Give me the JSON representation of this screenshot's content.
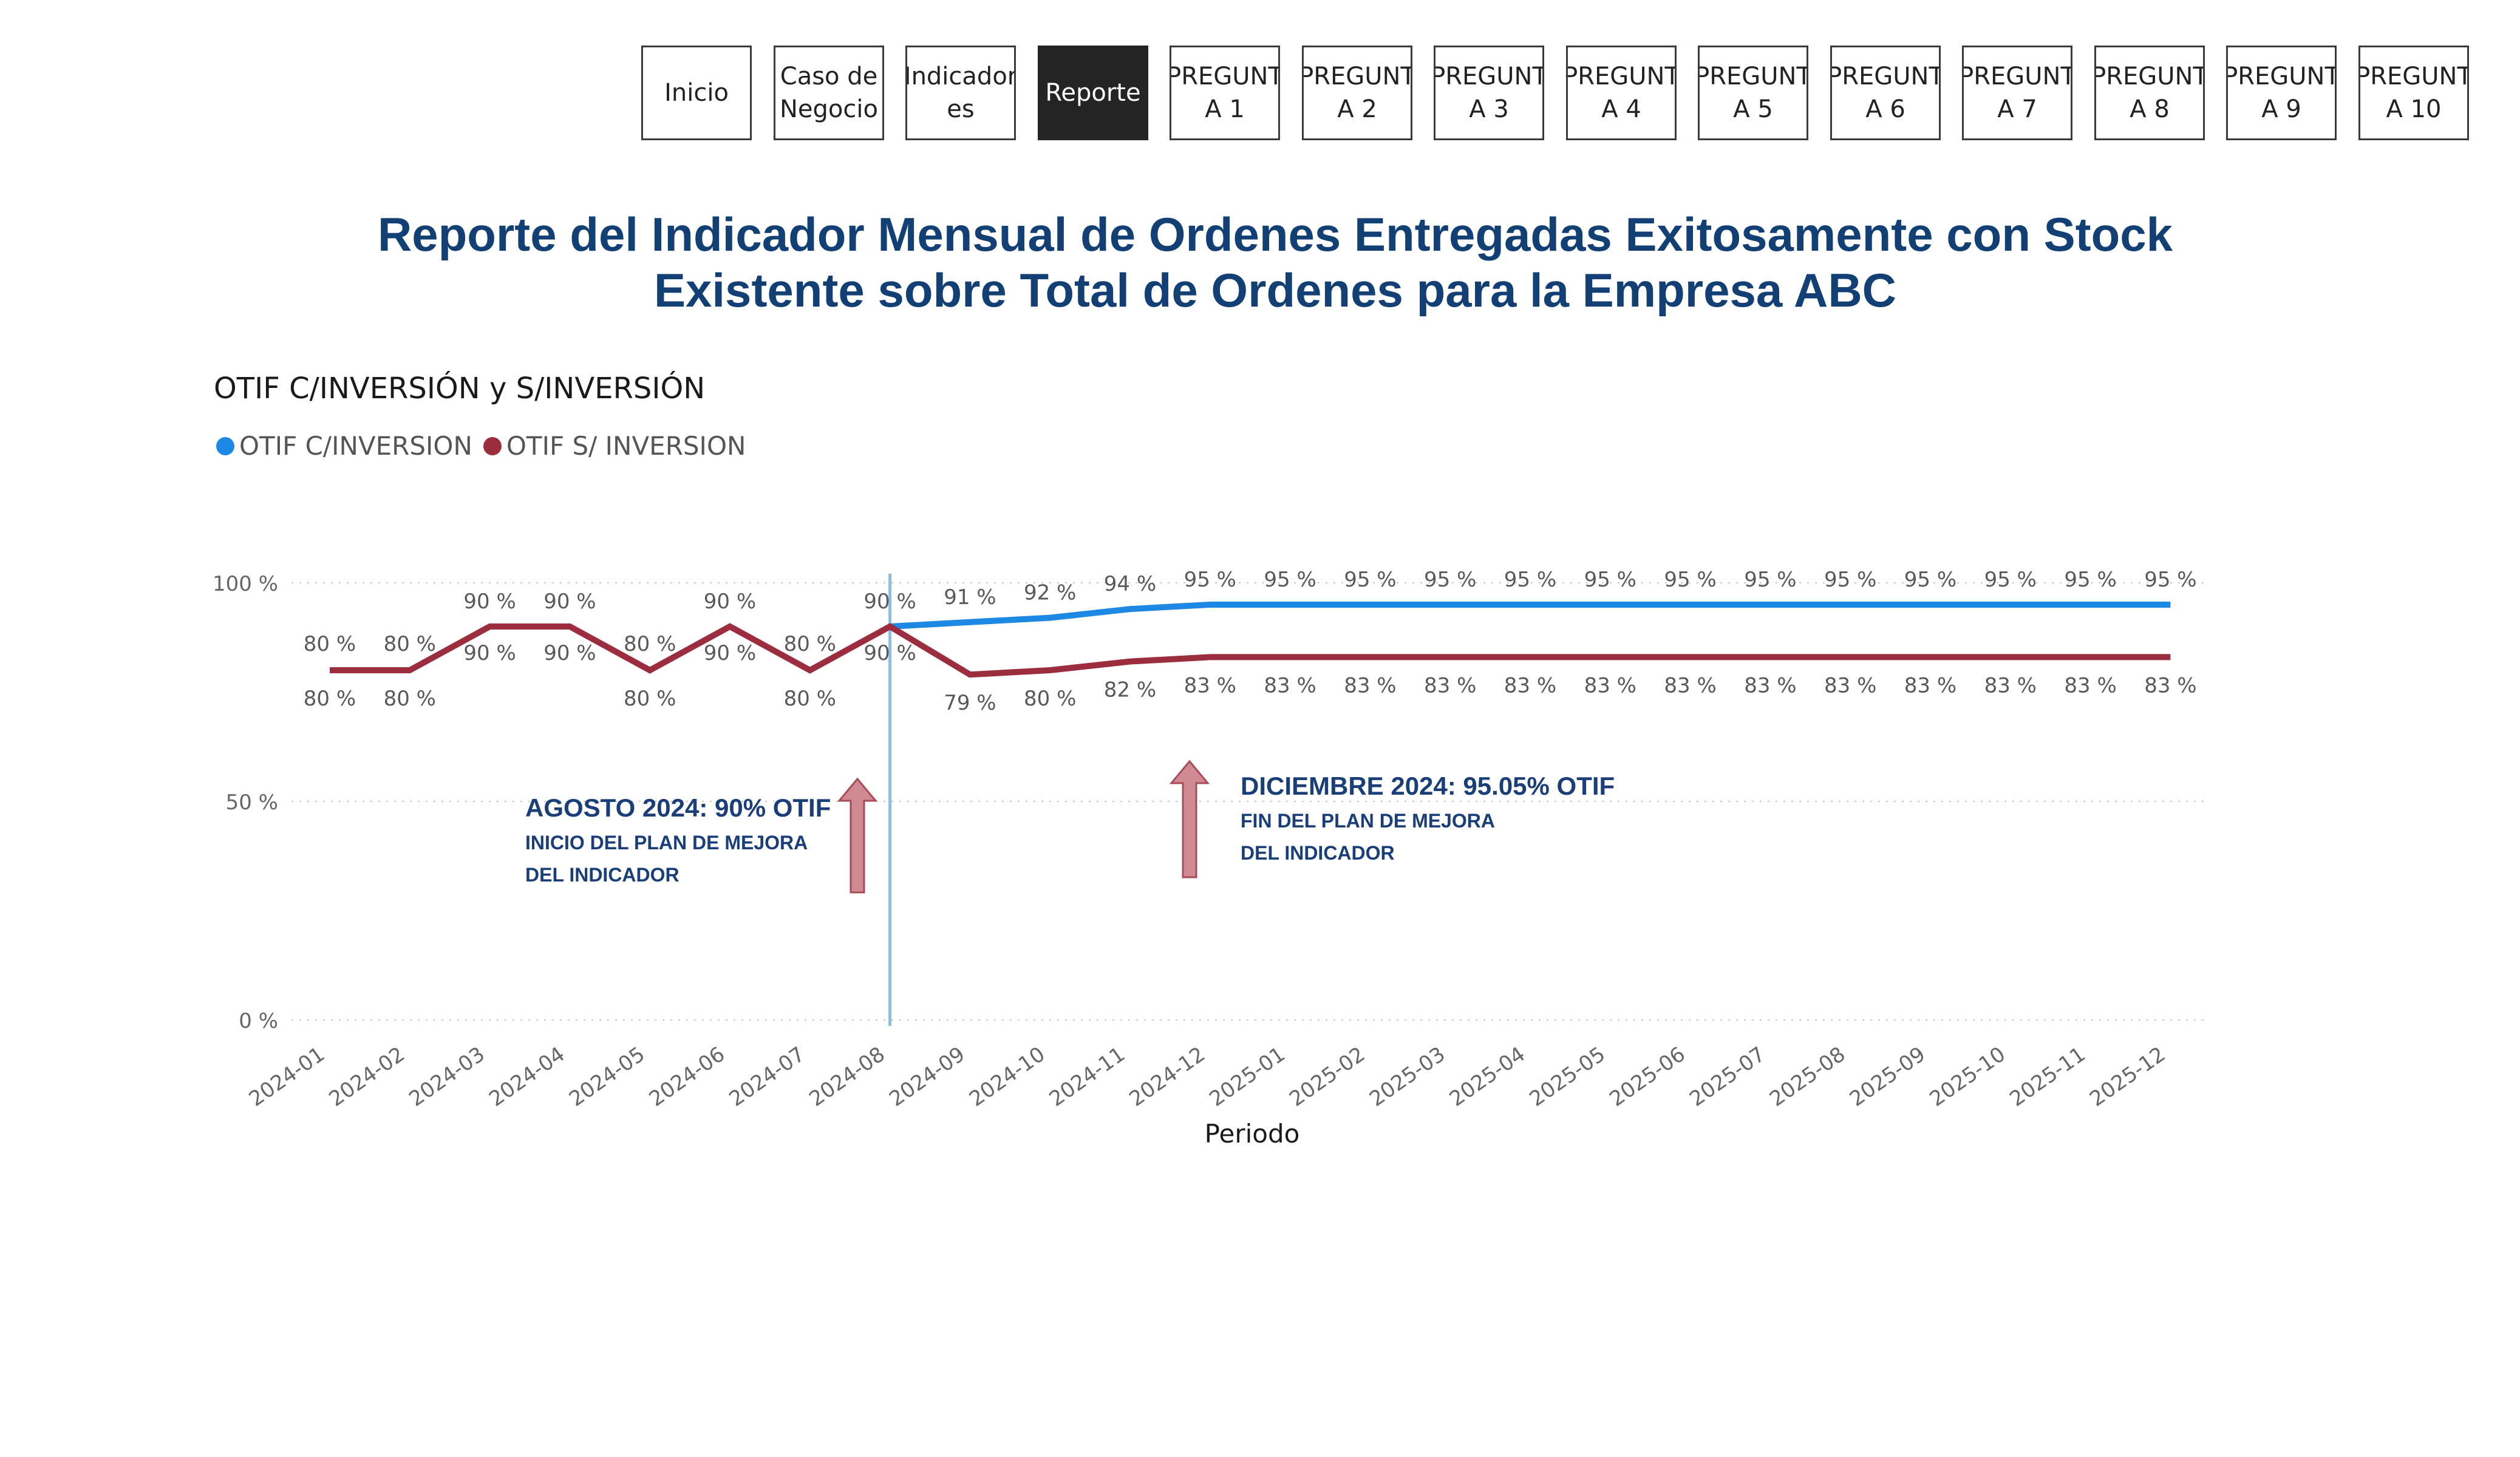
{
  "nav": {
    "buttons": [
      {
        "label": "Inicio",
        "active": false
      },
      {
        "label": "Caso de Negocio",
        "active": false
      },
      {
        "label": "Indicador es",
        "active": false
      },
      {
        "label": "Reporte",
        "active": true
      },
      {
        "label": "PREGUNT A 1",
        "active": false
      },
      {
        "label": "PREGUNT A 2",
        "active": false
      },
      {
        "label": "PREGUNT A 3",
        "active": false
      },
      {
        "label": "PREGUNT A 4",
        "active": false
      },
      {
        "label": "PREGUNT A 5",
        "active": false
      },
      {
        "label": "PREGUNT A 6",
        "active": false
      },
      {
        "label": "PREGUNT A 7",
        "active": false
      },
      {
        "label": "PREGUNT A 8",
        "active": false
      },
      {
        "label": "PREGUNT A 9",
        "active": false
      },
      {
        "label": "PREGUNT A 10",
        "active": false
      }
    ]
  },
  "report": {
    "title": "Reporte del Indicador Mensual de Ordenes Entregadas Exitosamente con Stock Existente sobre Total de Ordenes para la Empresa ABC"
  },
  "chart_data": {
    "type": "line",
    "title": "OTIF C/INVERSIÓN y S/INVERSIÓN",
    "xlabel": "Periodo",
    "ylabel": "",
    "ylim": [
      0,
      100
    ],
    "yticks": [
      "0 %",
      "50 %",
      "100 %"
    ],
    "grid": true,
    "legend_position": "top-left",
    "categories": [
      "2024-01",
      "2024-02",
      "2024-03",
      "2024-04",
      "2024-05",
      "2024-06",
      "2024-07",
      "2024-08",
      "2024-09",
      "2024-10",
      "2024-11",
      "2024-12",
      "2025-01",
      "2025-02",
      "2025-03",
      "2025-04",
      "2025-05",
      "2025-06",
      "2025-07",
      "2025-08",
      "2025-09",
      "2025-10",
      "2025-11",
      "2025-12"
    ],
    "series": [
      {
        "name": "OTIF C/INVERSION",
        "color": "#1e88e5",
        "values": [
          null,
          null,
          null,
          null,
          null,
          null,
          null,
          90,
          91,
          92,
          94,
          95,
          95,
          95,
          95,
          95,
          95,
          95,
          95,
          95,
          95,
          95,
          95,
          95
        ],
        "labels": [
          "",
          "",
          "90 %",
          "90 %",
          "",
          "90 %",
          "",
          "90 %",
          "91 %",
          "92 %",
          "94 %",
          "95 %",
          "95 %",
          "95 %",
          "95 %",
          "95 %",
          "95 %",
          "95 %",
          "95 %",
          "95 %",
          "95 %",
          "95 %",
          "95 %",
          "95 %"
        ],
        "label_extra": [
          "80 %",
          "80 %",
          "",
          "",
          "80 %",
          "",
          "80 %",
          "",
          "",
          "",
          "",
          "",
          "",
          "",
          "",
          "",
          "",
          "",
          "",
          "",
          "",
          "",
          "",
          ""
        ]
      },
      {
        "name": "OTIF S/ INVERSION",
        "color": "#9b2d3e",
        "values": [
          80,
          80,
          90,
          90,
          80,
          90,
          80,
          90,
          79,
          80,
          82,
          83,
          83,
          83,
          83,
          83,
          83,
          83,
          83,
          83,
          83,
          83,
          83,
          83
        ],
        "labels": [
          "80 %",
          "80 %",
          "90 %",
          "90 %",
          "80 %",
          "90 %",
          "80 %",
          "90 %",
          "79 %",
          "80 %",
          "82 %",
          "83 %",
          "83 %",
          "83 %",
          "83 %",
          "83 %",
          "83 %",
          "83 %",
          "83 %",
          "83 %",
          "83 %",
          "83 %",
          "83 %",
          "83 %"
        ]
      }
    ],
    "reference_line": {
      "category": "2024-08",
      "color": "#8fbde0"
    },
    "annotations": [
      {
        "category": "2024-08",
        "headline": "AGOSTO 2024: 90% OTIF",
        "lines": [
          "INICIO DEL PLAN DE MEJORA",
          "DEL INDICADOR"
        ]
      },
      {
        "category": "2024-12",
        "headline": "DICIEMBRE 2024: 95.05% OTIF",
        "lines": [
          "FIN DEL PLAN DE MEJORA",
          "DEL INDICADOR"
        ]
      }
    ]
  }
}
